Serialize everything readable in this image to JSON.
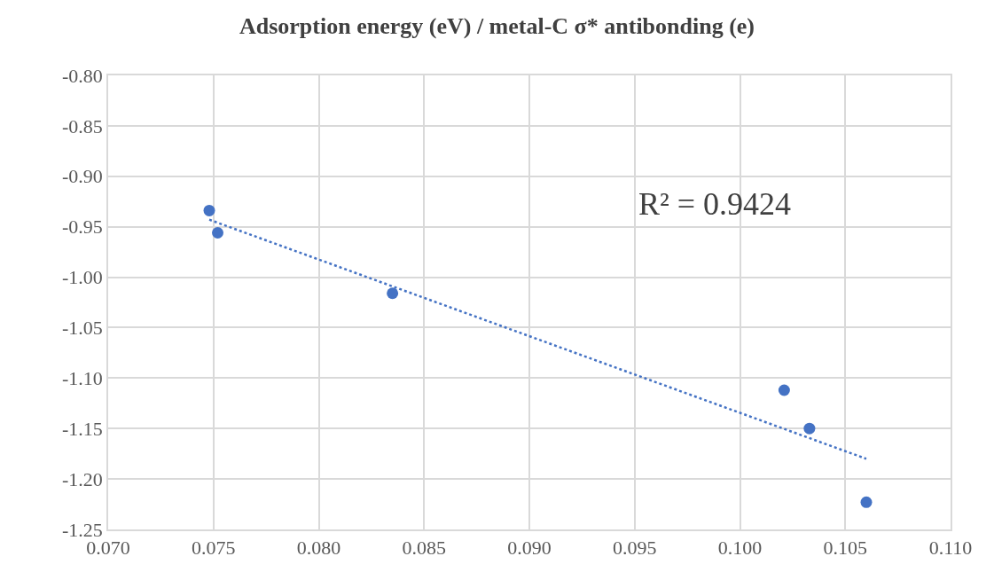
{
  "chart_data": {
    "type": "scatter",
    "title": "Adsorption energy (eV) / metal-C σ* antibonding (e)",
    "series": [
      {
        "color": "#4472c4",
        "marker": "circle",
        "x": [
          0.0748,
          0.0752,
          0.0835,
          0.1021,
          0.1033,
          0.106
        ],
        "values": [
          -0.934,
          -0.956,
          -1.016,
          -1.112,
          -1.15,
          -1.223
        ]
      },
      {
        "type": "line",
        "color": "#4472c4",
        "line_style": "dotted",
        "x": [
          0.0748,
          0.106
        ],
        "values": [
          -0.943,
          -1.18
        ]
      }
    ],
    "annotations": [
      "R² = 0.9424"
    ],
    "xlim": [
      0.07,
      0.11
    ],
    "xticks": [
      {
        "value": 0.07,
        "label": "0.070"
      },
      {
        "value": 0.075,
        "label": "0.075"
      },
      {
        "value": 0.08,
        "label": "0.080"
      },
      {
        "value": 0.085,
        "label": "0.085"
      },
      {
        "value": 0.09,
        "label": "0.090"
      },
      {
        "value": 0.095,
        "label": "0.095"
      },
      {
        "value": 0.1,
        "label": "0.100"
      },
      {
        "value": 0.105,
        "label": "0.105"
      },
      {
        "value": 0.11,
        "label": "0.110"
      }
    ],
    "ylim": [
      -1.25,
      -0.8
    ],
    "yticks": [
      {
        "value": -1.25,
        "label": "-1.25"
      },
      {
        "value": -1.2,
        "label": "-1.20"
      },
      {
        "value": -1.15,
        "label": "-1.15"
      },
      {
        "value": -1.1,
        "label": "-1.10"
      },
      {
        "value": -1.05,
        "label": "-1.05"
      },
      {
        "value": -1.0,
        "label": "-1.00"
      },
      {
        "value": -0.95,
        "label": "-0.95"
      },
      {
        "value": -0.9,
        "label": "-0.90"
      },
      {
        "value": -0.85,
        "label": "-0.85"
      },
      {
        "value": -0.8,
        "label": "-0.80"
      }
    ],
    "grid": true
  }
}
